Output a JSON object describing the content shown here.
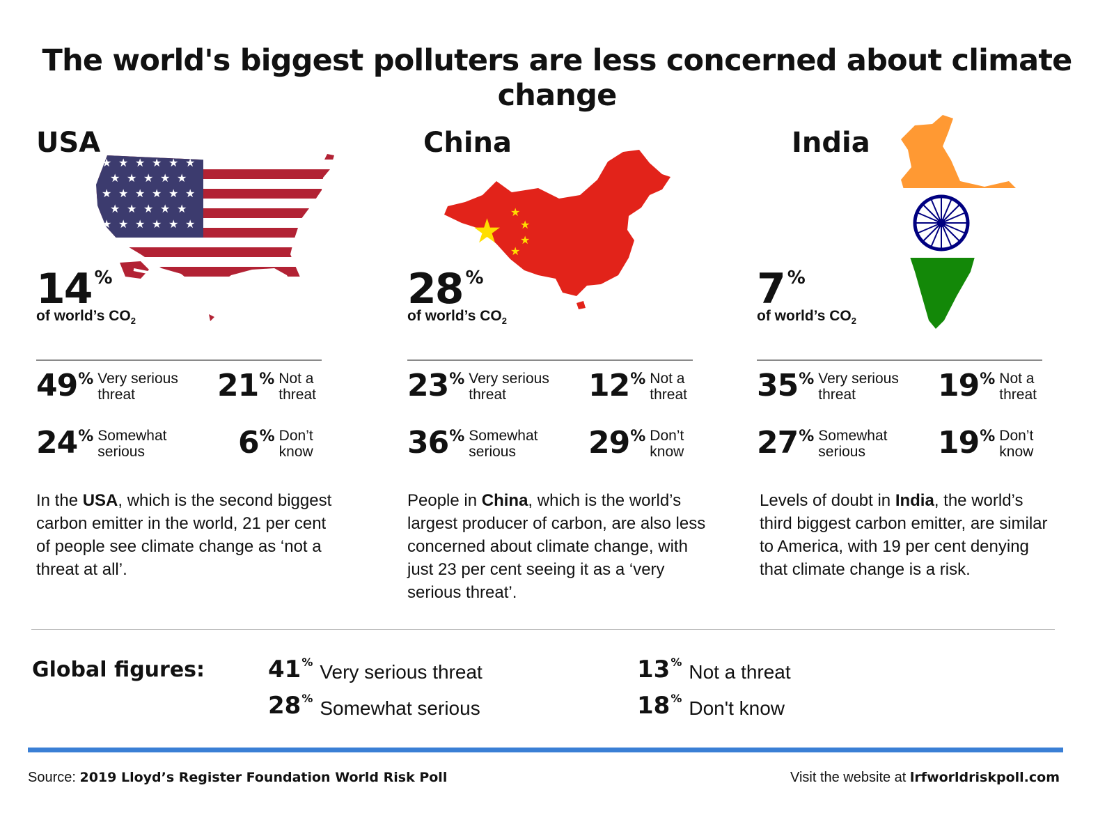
{
  "title": "The world's biggest polluters are less concerned about climate change",
  "co2_pct_sign": "%",
  "co2_label_prefix": "of world’s CO",
  "co2_label_sub": "2",
  "stat_pct_sign": "%",
  "countries": [
    {
      "name": "USA",
      "co2_share": "14",
      "stats": [
        {
          "value": "49",
          "label": "Very serious threat"
        },
        {
          "value": "21",
          "label": "Not a threat"
        },
        {
          "value": "24",
          "label": "Somewhat serious"
        },
        {
          "value": "6",
          "label": "Don’t know"
        }
      ],
      "desc_pre": "In the ",
      "desc_bold": "USA",
      "desc_post": ", which is the second biggest carbon emitter in the world, 21 per cent of people see climate change as ‘not a threat at all’."
    },
    {
      "name": "China",
      "co2_share": "28",
      "stats": [
        {
          "value": "23",
          "label": "Very serious threat"
        },
        {
          "value": "12",
          "label": "Not a threat"
        },
        {
          "value": "36",
          "label": "Somewhat serious"
        },
        {
          "value": "29",
          "label": "Don’t know"
        }
      ],
      "desc_pre": "People in ",
      "desc_bold": "China",
      "desc_post": ", which is the world’s largest producer of carbon, are also less concerned about climate change, with just 23 per cent seeing it as a ‘very serious threat’."
    },
    {
      "name": "India",
      "co2_share": "7",
      "stats": [
        {
          "value": "35",
          "label": "Very serious threat"
        },
        {
          "value": "19",
          "label": "Not a threat"
        },
        {
          "value": "27",
          "label": "Somewhat serious"
        },
        {
          "value": "19",
          "label": "Don’t know"
        }
      ],
      "desc_pre": "Levels of doubt in ",
      "desc_bold": "India",
      "desc_post": ", the world’s third biggest carbon emitter, are similar to America, with 19 per cent denying that climate change is a risk."
    }
  ],
  "global": {
    "label": "Global figures:",
    "pct_sign": "%",
    "items": [
      {
        "value": "41",
        "label": "Very serious threat"
      },
      {
        "value": "28",
        "label": "Somewhat serious"
      },
      {
        "value": "13",
        "label": "Not a threat"
      },
      {
        "value": "18",
        "label": "Don't know"
      }
    ]
  },
  "footer": {
    "source_prefix": "Source: ",
    "source_bold": "2019 Lloyd’s Register Foundation World Risk Poll",
    "visit_prefix": "Visit the website at ",
    "visit_bold": "lrfworldriskpoll.com"
  },
  "colors": {
    "usa_red": "#b22234",
    "usa_blue": "#3c3b6e",
    "china_red": "#e2231a",
    "china_yellow": "#ffde00",
    "india_saffron": "#ff9933",
    "india_green": "#138808",
    "india_chakra": "#000080",
    "accent_blue": "#3a7fd5"
  }
}
